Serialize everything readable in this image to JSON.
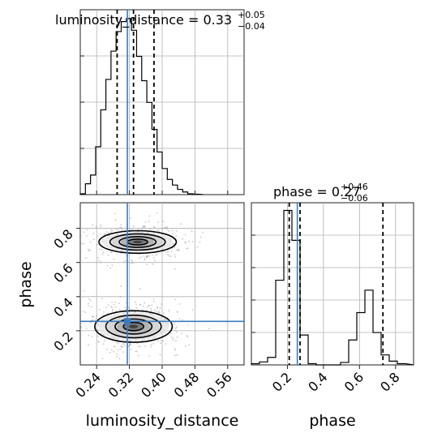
{
  "chart_data": {
    "type": "corner",
    "parameters": [
      "luminosity_distance",
      "phase"
    ],
    "truth": {
      "luminosity_distance": 0.315,
      "phase": 0.255
    },
    "titles": [
      {
        "name": "luminosity_distance",
        "value": "0.33",
        "plus": "+0.05",
        "minus": "−0.04"
      },
      {
        "name": "phase",
        "value": "0.27",
        "plus": "+0.46",
        "minus": "−0.06"
      }
    ],
    "axis_labels": {
      "x1": "luminosity_distance",
      "x2": "phase",
      "y2": "phase"
    },
    "luminosity_distance_hist": {
      "range": [
        0.2,
        0.6
      ],
      "bin_edges": [
        0.2,
        0.2125,
        0.225,
        0.2375,
        0.25,
        0.2625,
        0.275,
        0.2875,
        0.3,
        0.3125,
        0.325,
        0.3375,
        0.35,
        0.3625,
        0.375,
        0.3875,
        0.4,
        0.4125,
        0.425,
        0.4375,
        0.45,
        0.4625,
        0.475,
        0.4875
      ],
      "counts": [
        2,
        25,
        45,
        110,
        195,
        265,
        330,
        375,
        398,
        405,
        378,
        318,
        262,
        212,
        150,
        98,
        60,
        35,
        22,
        12,
        6,
        2,
        1
      ],
      "quantile_lines": [
        0.29,
        0.33,
        0.38
      ],
      "xticks": [
        "0.24",
        "0.32",
        "0.40",
        "0.48",
        "0.56"
      ],
      "xtick_values": [
        0.24,
        0.32,
        0.4,
        0.48,
        0.56
      ]
    },
    "phase_hist": {
      "range": [
        0.0,
        0.9
      ],
      "bin_edges": [
        0.0,
        0.045,
        0.09,
        0.135,
        0.18,
        0.225,
        0.27,
        0.315,
        0.36,
        0.405,
        0.45,
        0.495,
        0.54,
        0.585,
        0.63,
        0.675,
        0.72,
        0.765,
        0.81,
        0.855
      ],
      "counts": [
        5,
        12,
        30,
        340,
        620,
        500,
        120,
        5,
        0,
        0,
        0,
        10,
        100,
        210,
        300,
        130,
        40,
        15,
        5
      ],
      "quantile_lines": [
        0.21,
        0.27,
        0.73
      ],
      "xticks": [
        "0.2",
        "0.4",
        "0.6",
        "0.8"
      ],
      "xtick_values": [
        0.2,
        0.4,
        0.6,
        0.8
      ]
    },
    "joint": {
      "x_range": [
        0.2,
        0.6
      ],
      "y_range": [
        0.0,
        0.95
      ],
      "yticks": [
        "0.2",
        "0.4",
        "0.6",
        "0.8"
      ],
      "ytick_values": [
        0.2,
        0.4,
        0.6,
        0.8
      ],
      "modes": [
        {
          "x": 0.33,
          "y": 0.225,
          "sx": 0.045,
          "sy": 0.055,
          "weight": 0.62
        },
        {
          "x": 0.34,
          "y": 0.72,
          "sx": 0.045,
          "sy": 0.045,
          "weight": 0.38
        }
      ]
    },
    "grid": true
  }
}
